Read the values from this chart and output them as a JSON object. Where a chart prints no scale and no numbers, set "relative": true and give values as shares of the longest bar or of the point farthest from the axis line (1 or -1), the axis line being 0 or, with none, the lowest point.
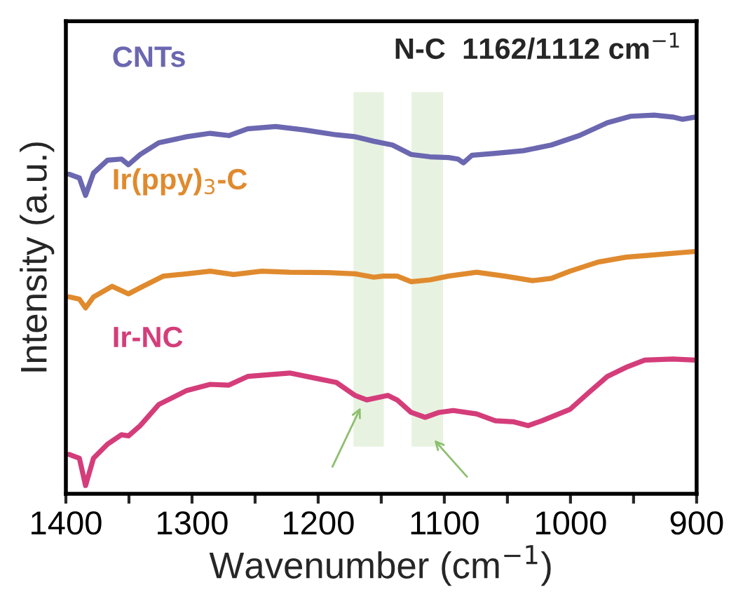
{
  "chart_data": {
    "type": "line",
    "relative": true,
    "xlabel": "Wavenumber (cm$^{−1}$)",
    "ylabel": "Intensity (a.u.)",
    "annotations": [
      "N-C  1162/1112 cm$^{−1}$"
    ],
    "xlim": [
      1400,
      900
    ],
    "xticks": [
      1400,
      {
        "value": 1350,
        "label": null
      },
      1300,
      {
        "value": 1250,
        "label": null
      },
      1200,
      {
        "value": 1150,
        "label": null
      },
      1100,
      {
        "value": 1050,
        "label": null
      },
      1000,
      {
        "value": 950,
        "label": null
      },
      900
    ],
    "legend": false,
    "grid": false,
    "marker": "none",
    "line_style": "solid",
    "bands": [
      {
        "axis": "x",
        "from": 1172,
        "to": 1148,
        "color": "#e2efd9"
      },
      {
        "axis": "x",
        "from": 1126,
        "to": 1101,
        "color": "#e2efd9"
      }
    ],
    "series": [
      {
        "name": "CNTs",
        "color": "#6b67b0",
        "x": [
          1397.4,
          1389.3,
          1384.4,
          1378.1,
          1367.0,
          1355.9,
          1350.4,
          1341.1,
          1326.3,
          1304.1,
          1285.6,
          1270.8,
          1255.9,
          1233.7,
          1211.5,
          1185.6,
          1170.8,
          1155.9,
          1141.1,
          1126.3,
          1111.4,
          1096.7,
          1089.2,
          1084.8,
          1078.1,
          1059.6,
          1037.4,
          1015.2,
          993.0,
          970.8,
          952.2,
          933.7,
          918.9,
          911.4,
          901.1
        ],
        "values": [
          0.844,
          0.834,
          0.788,
          0.847,
          0.881,
          0.884,
          0.869,
          0.896,
          0.927,
          0.943,
          0.952,
          0.946,
          0.964,
          0.97,
          0.961,
          0.948,
          0.943,
          0.931,
          0.921,
          0.896,
          0.89,
          0.888,
          0.884,
          0.874,
          0.894,
          0.899,
          0.906,
          0.921,
          0.946,
          0.98,
          0.997,
          1.0,
          0.995,
          0.989,
          0.995
        ]
      },
      {
        "name": "Ir(ppy)$_{3}$-C",
        "color": "#e08a2e",
        "x": [
          1397.4,
          1389.3,
          1384.4,
          1378.1,
          1363.3,
          1350.4,
          1341.1,
          1322.6,
          1304.1,
          1285.6,
          1267.0,
          1244.8,
          1222.6,
          1192.6,
          1170.8,
          1155.9,
          1148.5,
          1137.4,
          1126.3,
          1111.4,
          1096.7,
          1074.4,
          1052.2,
          1030.0,
          1015.2,
          1000.4,
          978.1,
          955.9,
          933.7,
          901.1
        ],
        "values": [
          0.52,
          0.514,
          0.491,
          0.52,
          0.548,
          0.528,
          0.544,
          0.575,
          0.581,
          0.588,
          0.579,
          0.588,
          0.585,
          0.584,
          0.581,
          0.572,
          0.575,
          0.575,
          0.56,
          0.565,
          0.575,
          0.585,
          0.575,
          0.563,
          0.569,
          0.588,
          0.612,
          0.625,
          0.631,
          0.64
        ]
      },
      {
        "name": "Ir-NC",
        "color": "#d43d7a",
        "x": [
          1397.4,
          1389.3,
          1384.4,
          1378.1,
          1367.0,
          1355.9,
          1350.4,
          1341.1,
          1326.3,
          1304.1,
          1285.6,
          1270.8,
          1255.9,
          1222.6,
          1200.4,
          1185.6,
          1170.8,
          1161.5,
          1144.8,
          1137.4,
          1126.3,
          1115.2,
          1104.1,
          1093.0,
          1074.4,
          1059.6,
          1044.8,
          1033.7,
          1022.6,
          1000.4,
          985.6,
          970.8,
          955.9,
          941.1,
          918.9,
          901.1
        ],
        "values": [
          0.104,
          0.094,
          0.022,
          0.094,
          0.131,
          0.156,
          0.153,
          0.18,
          0.236,
          0.273,
          0.289,
          0.287,
          0.31,
          0.319,
          0.304,
          0.294,
          0.26,
          0.248,
          0.26,
          0.248,
          0.215,
          0.202,
          0.215,
          0.22,
          0.211,
          0.193,
          0.19,
          0.18,
          0.193,
          0.223,
          0.267,
          0.31,
          0.334,
          0.353,
          0.356,
          0.353
        ]
      }
    ]
  }
}
